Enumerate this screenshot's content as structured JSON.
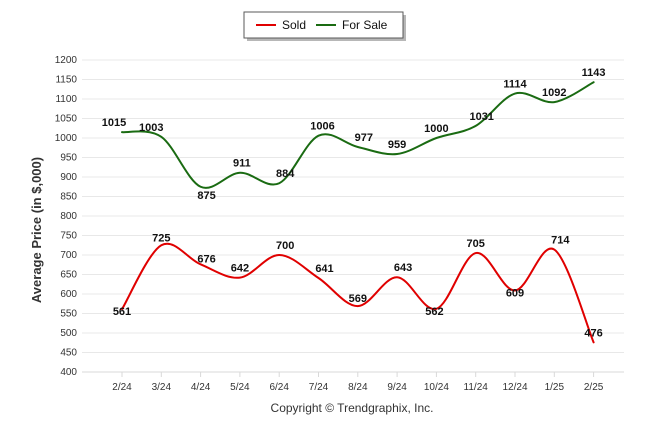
{
  "chart_data": {
    "type": "line",
    "categories": [
      "2/24",
      "3/24",
      "4/24",
      "5/24",
      "6/24",
      "7/24",
      "8/24",
      "9/24",
      "10/24",
      "11/24",
      "12/24",
      "1/25",
      "2/25"
    ],
    "series": [
      {
        "name": "Sold",
        "color": "#e00000",
        "values": [
          561,
          725,
          676,
          642,
          700,
          641,
          569,
          643,
          562,
          705,
          609,
          714,
          476
        ]
      },
      {
        "name": "For Sale",
        "color": "#1a6b12",
        "values": [
          1015,
          1003,
          875,
          911,
          884,
          1006,
          977,
          959,
          1000,
          1031,
          1114,
          1092,
          1143
        ]
      }
    ],
    "ylabel": "Average Price (in $,000)",
    "xlabel": "",
    "ylim": [
      400,
      1200
    ],
    "yticks": [
      400,
      450,
      500,
      550,
      600,
      650,
      700,
      750,
      800,
      850,
      900,
      950,
      1000,
      1050,
      1100,
      1150,
      1200
    ],
    "legend": {
      "position": "top-center",
      "entries": [
        "Sold",
        "For Sale"
      ]
    },
    "grid": true
  },
  "footer": {
    "copyright": "Copyright © Trendgraphix, Inc."
  }
}
